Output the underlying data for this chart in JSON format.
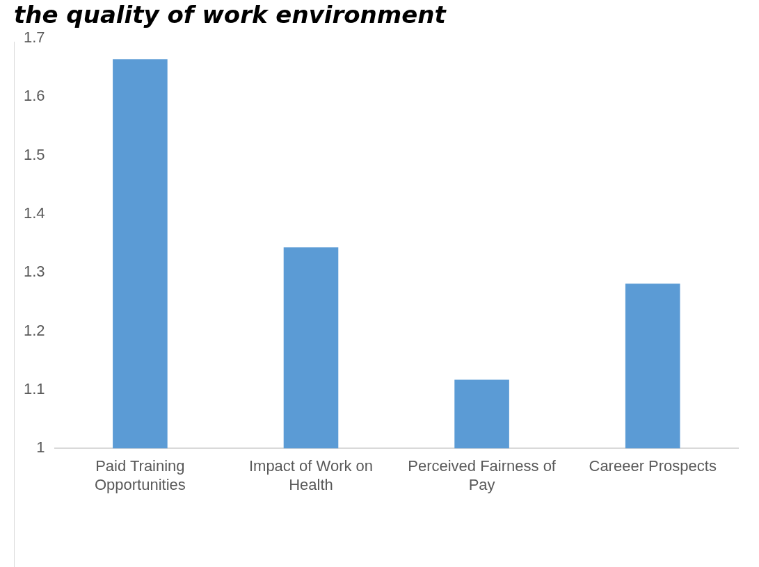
{
  "chart_data": {
    "type": "bar",
    "title": "the quality of work environment",
    "categories": [
      "Paid Training Opportunities",
      "Impact of Work on Health",
      "Perceived Fairness of Pay",
      "Careeer Prospects"
    ],
    "values": [
      1.664,
      1.343,
      1.117,
      1.281
    ],
    "color": "#5b9bd5",
    "ylim": [
      1,
      1.7
    ],
    "yticks": [
      1,
      1.1,
      1.2,
      1.3,
      1.4,
      1.5,
      1.6,
      1.7
    ],
    "grid": false,
    "legend": false
  }
}
